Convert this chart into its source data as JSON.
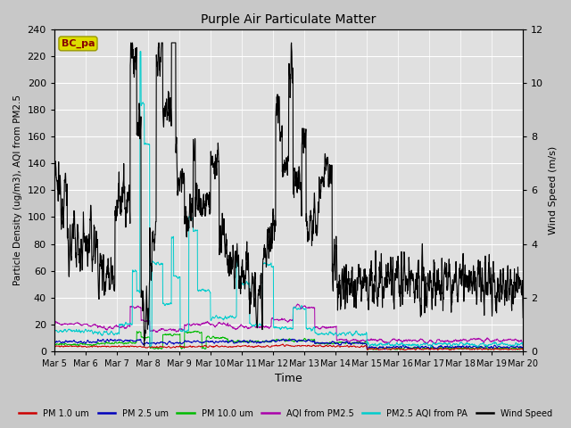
{
  "title": "Purple Air Particulate Matter",
  "xlabel": "Time",
  "ylabel_left": "Particle Density (ug/m3), AQI from PM2.5",
  "ylabel_right": "Wind Speed (m/s)",
  "annotation": "BC_pa",
  "ylim_left": [
    0,
    240
  ],
  "ylim_right": [
    0,
    12
  ],
  "yticks_left": [
    0,
    20,
    40,
    60,
    80,
    100,
    120,
    140,
    160,
    180,
    200,
    220,
    240
  ],
  "yticks_right": [
    0,
    2,
    4,
    6,
    8,
    10,
    12
  ],
  "xtick_labels": [
    "Mar 5",
    "Mar 6",
    "Mar 7",
    "Mar 8",
    "Mar 9",
    "Mar 10",
    "Mar 11",
    "Mar 12",
    "Mar 13",
    "Mar 14",
    "Mar 15",
    "Mar 16",
    "Mar 17",
    "Mar 18",
    "Mar 19",
    "Mar 20"
  ],
  "fig_bg_color": "#c8c8c8",
  "plot_bg_color": "#e0e0e0",
  "grid_color": "#ffffff",
  "legend_items": [
    {
      "label": "PM 1.0 um",
      "color": "#cc0000"
    },
    {
      "label": "PM 2.5 um",
      "color": "#0000bb"
    },
    {
      "label": "PM 10.0 um",
      "color": "#00bb00"
    },
    {
      "label": "AQI from PM2.5",
      "color": "#aa00aa"
    },
    {
      "label": "PM2.5 AQI from PA",
      "color": "#00cccc"
    },
    {
      "label": "Wind Speed",
      "color": "#000000"
    }
  ]
}
